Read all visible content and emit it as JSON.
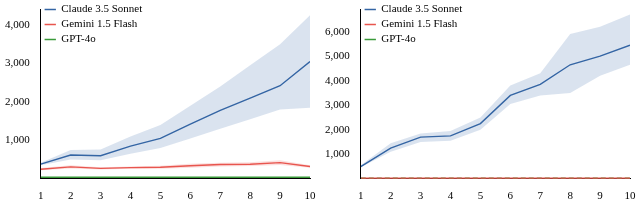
{
  "chart_data": [
    {
      "type": "line",
      "x": [
        1,
        2,
        3,
        4,
        5,
        6,
        7,
        8,
        9,
        10
      ],
      "xlim": [
        1,
        10
      ],
      "xticks": [
        1,
        2,
        3,
        4,
        5,
        6,
        7,
        8,
        9,
        10
      ],
      "ylim": [
        0,
        4400
      ],
      "yticks": [
        {
          "value": 1000,
          "label": "1,000"
        },
        {
          "value": 2000,
          "label": "2,000"
        },
        {
          "value": 3000,
          "label": "3,000"
        },
        {
          "value": 4000,
          "label": "4,000"
        }
      ],
      "grid": false,
      "legend": "upper left",
      "series": [
        {
          "name": "Claude 3.5 Sonnet",
          "color": "#3465a4",
          "line_style": "solid",
          "values": [
            380,
            620,
            600,
            850,
            1050,
            1420,
            1780,
            2100,
            2420,
            3050
          ],
          "lower": [
            350,
            500,
            480,
            650,
            800,
            1050,
            1300,
            1550,
            1800,
            1850
          ],
          "upper": [
            420,
            750,
            760,
            1100,
            1400,
            1900,
            2400,
            2950,
            3500,
            4250
          ]
        },
        {
          "name": "Gemini 1.5 Flash",
          "color": "#e8554e",
          "line_style": "solid",
          "values": [
            250,
            310,
            270,
            290,
            300,
            340,
            370,
            380,
            420,
            320
          ],
          "lower": [
            220,
            270,
            240,
            260,
            260,
            290,
            320,
            330,
            360,
            290
          ],
          "upper": [
            280,
            350,
            300,
            320,
            340,
            390,
            420,
            430,
            480,
            350
          ]
        },
        {
          "name": "GPT-4o",
          "color": "#3a9a3a",
          "line_style": "solid",
          "values": [
            40,
            40,
            40,
            40,
            40,
            40,
            40,
            40,
            40,
            40
          ]
        }
      ]
    },
    {
      "type": "line",
      "x": [
        1,
        2,
        3,
        4,
        5,
        6,
        7,
        8,
        9,
        10
      ],
      "xlim": [
        1,
        10
      ],
      "xticks": [
        1,
        2,
        3,
        4,
        5,
        6,
        7,
        8,
        9,
        10
      ],
      "ylim": [
        0,
        6900
      ],
      "yticks": [
        {
          "value": 1000,
          "label": "1,000"
        },
        {
          "value": 2000,
          "label": "2,000"
        },
        {
          "value": 3000,
          "label": "3,000"
        },
        {
          "value": 4000,
          "label": "4,000"
        },
        {
          "value": 5000,
          "label": "5,000"
        },
        {
          "value": 6000,
          "label": "6,000"
        }
      ],
      "grid": false,
      "legend": "upper left",
      "series": [
        {
          "name": "Claude 3.5 Sonnet",
          "color": "#3465a4",
          "line_style": "solid",
          "values": [
            500,
            1250,
            1700,
            1750,
            2250,
            3400,
            3850,
            4650,
            5000,
            5450
          ],
          "lower": [
            470,
            1100,
            1500,
            1550,
            2000,
            3050,
            3400,
            3500,
            4200,
            4650
          ],
          "upper": [
            550,
            1450,
            1850,
            1950,
            2500,
            3800,
            4300,
            5900,
            6200,
            6700
          ]
        },
        {
          "name": "Gemini 1.5 Flash",
          "color": "#e8554e",
          "line_style": "solid",
          "values": [
            20,
            20,
            20,
            20,
            20,
            20,
            20,
            20,
            20,
            20
          ]
        },
        {
          "name": "GPT-4o",
          "color": "#3a9a3a",
          "line_style": "dashed",
          "values": [
            20,
            20,
            20,
            20,
            20,
            20,
            20,
            20,
            20,
            20
          ]
        }
      ]
    }
  ]
}
